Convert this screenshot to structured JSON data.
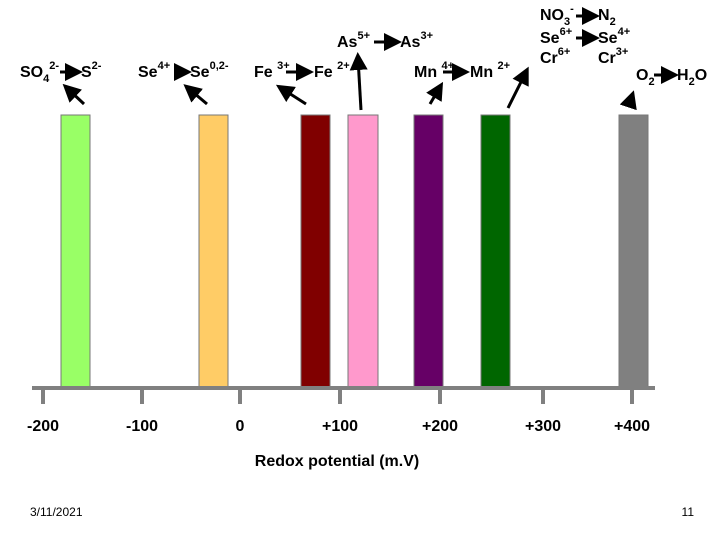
{
  "species": {
    "so4": [
      "SO",
      "4",
      "2-"
    ],
    "s": [
      "S",
      "2-"
    ],
    "se4": [
      "Se",
      "4+"
    ],
    "se0": [
      "Se",
      "0,2-"
    ],
    "fe3": [
      "Fe ",
      "3+"
    ],
    "fe2": [
      "Fe ",
      "2+"
    ],
    "as5": [
      "As",
      "5+"
    ],
    "as3": [
      "As",
      "3+"
    ],
    "mn4": [
      "Mn ",
      "4+"
    ],
    "mn2": [
      "Mn ",
      "2+"
    ],
    "no3": [
      "NO",
      "3",
      "-"
    ],
    "n2": [
      "N",
      "2"
    ],
    "se6": [
      "Se",
      "6+"
    ],
    "se4b": [
      "Se",
      "4+"
    ],
    "cr6": [
      "Cr",
      "6+"
    ],
    "cr3": [
      "Cr",
      "3+"
    ],
    "o2": [
      "O",
      "2"
    ],
    "h2o": [
      "H",
      "2",
      "O"
    ]
  },
  "axis": {
    "ticks": [
      "-200",
      "-100",
      "0",
      "+100",
      "+200",
      "+300",
      "+400"
    ],
    "title": "Redox potential (m.V)"
  },
  "footer": {
    "date": "3/11/2021",
    "page": "11"
  }
}
